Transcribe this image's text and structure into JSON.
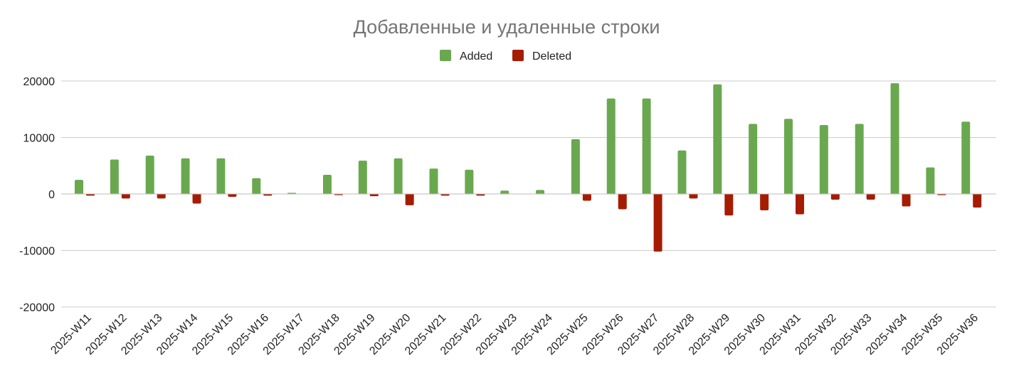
{
  "chart_data": {
    "type": "bar",
    "title": "Добавленные и удаленные строки",
    "categories": [
      "2025-W11",
      "2025-W12",
      "2025-W13",
      "2025-W14",
      "2025-W15",
      "2025-W16",
      "2025-W17",
      "2025-W18",
      "2025-W19",
      "2025-W20",
      "2025-W21",
      "2025-W22",
      "2025-W23",
      "2025-W24",
      "2025-W25",
      "2025-W26",
      "2025-W27",
      "2025-W28",
      "2025-W29",
      "2025-W30",
      "2025-W31",
      "2025-W32",
      "2025-W33",
      "2025-W34",
      "2025-W35",
      "2025-W36"
    ],
    "series": [
      {
        "name": "Added",
        "color": "#6aa84f",
        "values": [
          2500,
          6100,
          6800,
          6300,
          6300,
          2800,
          200,
          3400,
          5900,
          6300,
          4500,
          4300,
          600,
          700,
          9700,
          16900,
          16900,
          7700,
          19400,
          12400,
          13300,
          12200,
          12400,
          19600,
          4700,
          12800
        ]
      },
      {
        "name": "Deleted",
        "color": "#a61c00",
        "values": [
          -300,
          -800,
          -800,
          -1700,
          -500,
          -300,
          0,
          -200,
          -400,
          -2000,
          -300,
          -300,
          0,
          0,
          -1200,
          -2700,
          -10200,
          -800,
          -3800,
          -2900,
          -3600,
          -1000,
          -1000,
          -2200,
          -200,
          -2400
        ]
      }
    ],
    "ylim": [
      -20000,
      20000
    ],
    "yticks": [
      20000,
      10000,
      0,
      -10000,
      -20000
    ],
    "ytick_labels": [
      "20000",
      "10000",
      "0",
      "-10000",
      "-20000"
    ],
    "legend_position": "top-center",
    "grid": true,
    "xlabel": "",
    "ylabel": ""
  }
}
